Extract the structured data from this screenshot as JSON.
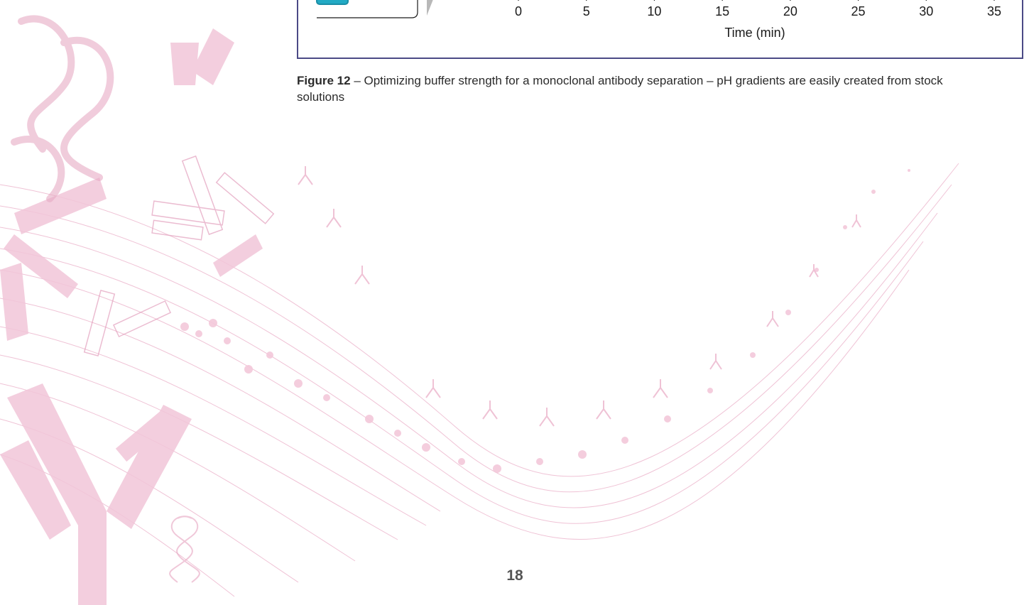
{
  "chart_data": {
    "type": "line",
    "xlabel": "Time (min)",
    "x_ticks": [
      0,
      5,
      10,
      15,
      20,
      25,
      30,
      35
    ],
    "xlim": [
      0,
      35
    ]
  },
  "caption": {
    "figure_label": "Figure 12",
    "text": " – Optimizing buffer strength for a monoclonal antibody separation – pH gradients are easily created from stock solutions"
  },
  "page_number": "18",
  "colors": {
    "frame": "#4b4a86",
    "legend_swatch": "#22aac4",
    "background_art": "#e9a9c4"
  }
}
